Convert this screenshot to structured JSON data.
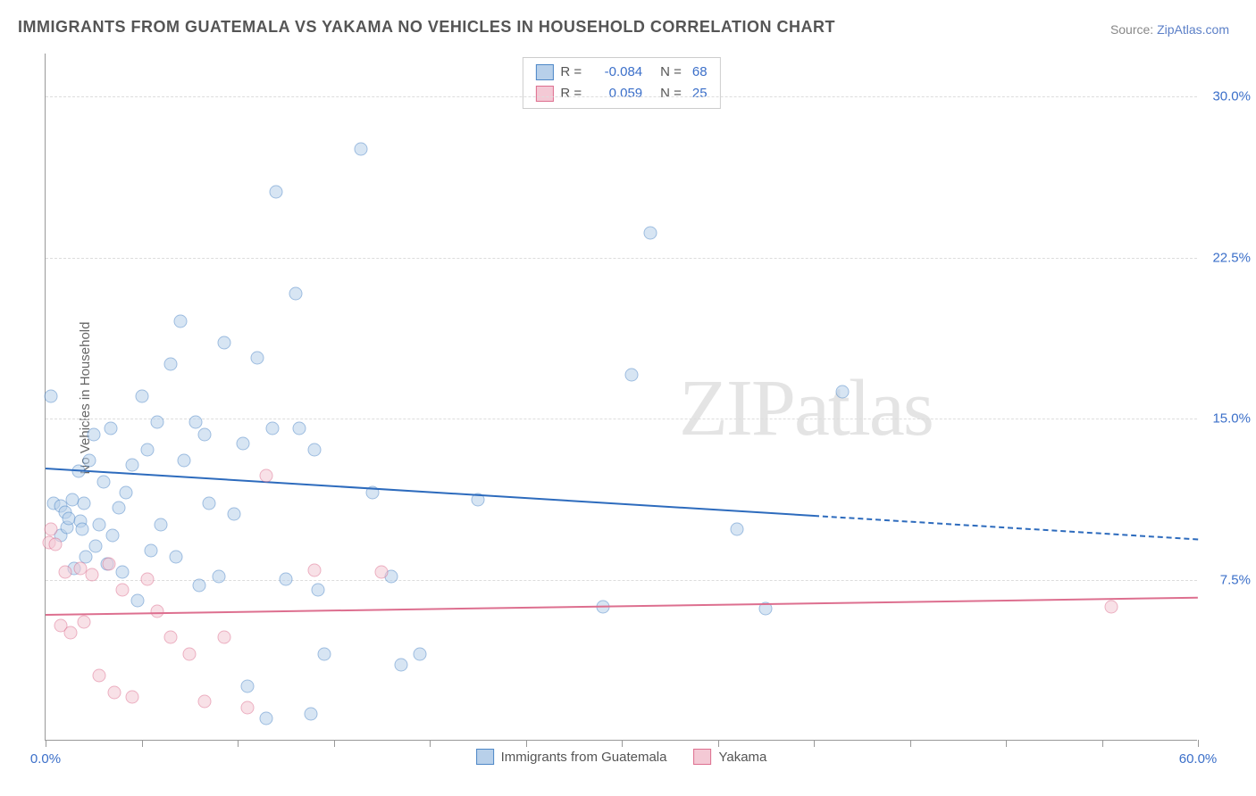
{
  "title": "IMMIGRANTS FROM GUATEMALA VS YAKAMA NO VEHICLES IN HOUSEHOLD CORRELATION CHART",
  "source_prefix": "Source: ",
  "source_link": "ZipAtlas.com",
  "ylabel": "No Vehicles in Household",
  "watermark_a": "ZIP",
  "watermark_b": "atlas",
  "chart": {
    "type": "scatter",
    "xlim": [
      0,
      60
    ],
    "ylim": [
      0,
      32
    ],
    "x_min_label": "0.0%",
    "x_max_label": "60.0%",
    "yticks": [
      {
        "v": 7.5,
        "label": "7.5%"
      },
      {
        "v": 15.0,
        "label": "15.0%"
      },
      {
        "v": 22.5,
        "label": "22.5%"
      },
      {
        "v": 30.0,
        "label": "30.0%"
      }
    ],
    "xtick_marks": [
      0,
      5,
      10,
      15,
      20,
      25,
      30,
      35,
      40,
      45,
      50,
      55,
      60
    ],
    "background_color": "#ffffff",
    "grid_color": "#dddddd",
    "axis_color": "#999999",
    "marker_size": 15,
    "series": [
      {
        "name": "Immigrants from Guatemala",
        "fill": "#b8d0ea",
        "stroke": "#4d87c7",
        "line_color": "#2d6bbd",
        "R": "-0.084",
        "N": "68",
        "trend": {
          "x1": 0,
          "y1": 12.7,
          "x2": 40,
          "y2": 10.5,
          "dash_x2": 60,
          "dash_y2": 9.4
        },
        "points": [
          [
            0.3,
            16.0
          ],
          [
            0.4,
            11.0
          ],
          [
            0.8,
            9.5
          ],
          [
            0.8,
            10.9
          ],
          [
            1.0,
            10.6
          ],
          [
            1.1,
            9.9
          ],
          [
            1.2,
            10.3
          ],
          [
            1.4,
            11.2
          ],
          [
            1.5,
            8.0
          ],
          [
            1.7,
            12.5
          ],
          [
            1.8,
            10.2
          ],
          [
            1.9,
            9.8
          ],
          [
            2.0,
            11.0
          ],
          [
            2.1,
            8.5
          ],
          [
            2.3,
            13.0
          ],
          [
            2.5,
            14.2
          ],
          [
            2.6,
            9.0
          ],
          [
            2.8,
            10.0
          ],
          [
            3.0,
            12.0
          ],
          [
            3.2,
            8.2
          ],
          [
            3.4,
            14.5
          ],
          [
            3.5,
            9.5
          ],
          [
            3.8,
            10.8
          ],
          [
            4.0,
            7.8
          ],
          [
            4.2,
            11.5
          ],
          [
            4.5,
            12.8
          ],
          [
            4.8,
            6.5
          ],
          [
            5.0,
            16.0
          ],
          [
            5.3,
            13.5
          ],
          [
            5.5,
            8.8
          ],
          [
            5.8,
            14.8
          ],
          [
            6.0,
            10.0
          ],
          [
            6.5,
            17.5
          ],
          [
            6.8,
            8.5
          ],
          [
            7.0,
            19.5
          ],
          [
            7.2,
            13.0
          ],
          [
            7.8,
            14.8
          ],
          [
            8.0,
            7.2
          ],
          [
            8.3,
            14.2
          ],
          [
            8.5,
            11.0
          ],
          [
            9.0,
            7.6
          ],
          [
            9.3,
            18.5
          ],
          [
            9.8,
            10.5
          ],
          [
            10.3,
            13.8
          ],
          [
            10.5,
            2.5
          ],
          [
            11.0,
            17.8
          ],
          [
            11.5,
            1.0
          ],
          [
            11.8,
            14.5
          ],
          [
            12.0,
            25.5
          ],
          [
            12.5,
            7.5
          ],
          [
            13.0,
            20.8
          ],
          [
            13.2,
            14.5
          ],
          [
            13.8,
            1.2
          ],
          [
            14.0,
            13.5
          ],
          [
            14.2,
            7.0
          ],
          [
            14.5,
            4.0
          ],
          [
            16.4,
            27.5
          ],
          [
            17.0,
            11.5
          ],
          [
            18.0,
            7.6
          ],
          [
            18.5,
            3.5
          ],
          [
            19.5,
            4.0
          ],
          [
            22.5,
            11.2
          ],
          [
            29.0,
            6.2
          ],
          [
            30.5,
            17.0
          ],
          [
            31.5,
            23.6
          ],
          [
            36.0,
            9.8
          ],
          [
            37.5,
            6.1
          ],
          [
            41.5,
            16.2
          ]
        ]
      },
      {
        "name": "Yakama",
        "fill": "#f4c9d5",
        "stroke": "#dd6f8f",
        "line_color": "#dd6f8f",
        "R": "0.059",
        "N": "25",
        "trend": {
          "x1": 0,
          "y1": 5.9,
          "x2": 60,
          "y2": 6.7
        },
        "points": [
          [
            0.2,
            9.2
          ],
          [
            0.3,
            9.8
          ],
          [
            0.5,
            9.1
          ],
          [
            0.8,
            5.3
          ],
          [
            1.0,
            7.8
          ],
          [
            1.3,
            5.0
          ],
          [
            1.8,
            8.0
          ],
          [
            2.0,
            5.5
          ],
          [
            2.4,
            7.7
          ],
          [
            2.8,
            3.0
          ],
          [
            3.3,
            8.2
          ],
          [
            3.6,
            2.2
          ],
          [
            4.0,
            7.0
          ],
          [
            4.5,
            2.0
          ],
          [
            5.3,
            7.5
          ],
          [
            5.8,
            6.0
          ],
          [
            6.5,
            4.8
          ],
          [
            7.5,
            4.0
          ],
          [
            8.3,
            1.8
          ],
          [
            9.3,
            4.8
          ],
          [
            10.5,
            1.5
          ],
          [
            11.5,
            12.3
          ],
          [
            14.0,
            7.9
          ],
          [
            17.5,
            7.8
          ],
          [
            55.5,
            6.2
          ]
        ]
      }
    ]
  },
  "legend": {
    "items": [
      {
        "label": "Immigrants from Guatemala",
        "fill": "#b8d0ea",
        "stroke": "#4d87c7"
      },
      {
        "label": "Yakama",
        "fill": "#f4c9d5",
        "stroke": "#dd6f8f"
      }
    ]
  }
}
